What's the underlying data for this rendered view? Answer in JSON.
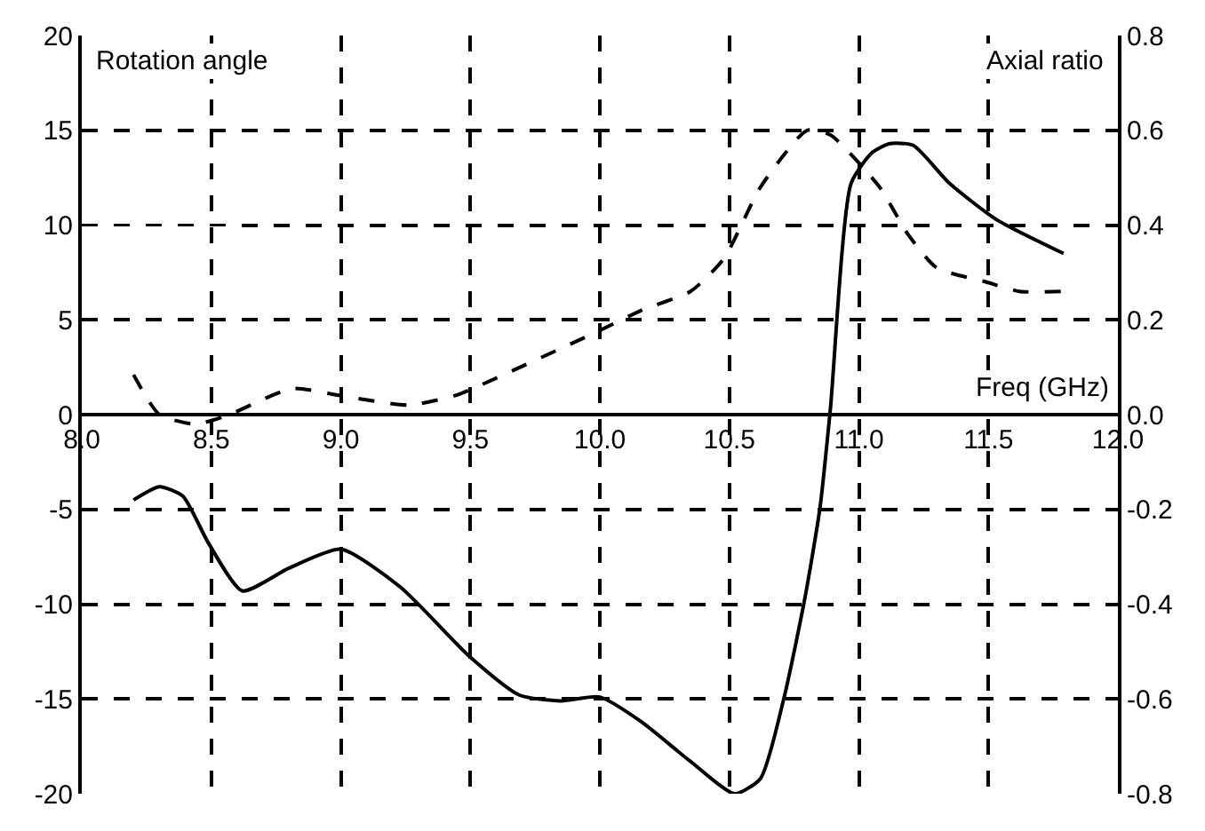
{
  "chart_data": {
    "type": "line",
    "xlabel": "Freq (GHz)",
    "ylabel": "Rotation angle",
    "y2label": "Axial ratio",
    "series": [
      {
        "color": "#000000",
        "line_style": "solid",
        "x": [
          8.2,
          8.3,
          8.39,
          8.49,
          8.62,
          8.8,
          9.0,
          9.23,
          9.5,
          9.69,
          9.85,
          10.0,
          10.16,
          10.35,
          10.52,
          10.62,
          10.71,
          10.79,
          10.85,
          10.89,
          10.97,
          11.05,
          11.12,
          11.21,
          11.35,
          11.53,
          11.79
        ],
        "values": [
          -4.5,
          -3.8,
          -4.3,
          -6.8,
          -9.3,
          -8.1,
          -7.1,
          -9.1,
          -12.8,
          -14.8,
          -15.1,
          -14.9,
          -16.2,
          -18.3,
          -20,
          -19.2,
          -15,
          -9.8,
          -4.9,
          0.3,
          12.2,
          13.8,
          14.3,
          14.2,
          12.2,
          10.3,
          8.5
        ]
      },
      {
        "color": "#000000",
        "line_style": "dashed",
        "axis": "y2",
        "x": [
          8.2,
          8.3,
          8.44,
          8.57,
          8.81,
          9.0,
          9.26,
          9.44,
          9.53,
          9.99,
          10.16,
          10.35,
          10.48,
          10.62,
          10.8,
          10.89,
          11.08,
          11.19,
          11.3,
          11.49,
          11.62,
          11.78
        ],
        "values": [
          0.084,
          0.0,
          -0.02,
          0.0,
          0.055,
          0.04,
          0.02,
          0.04,
          0.06,
          0.175,
          0.22,
          0.26,
          0.33,
          0.48,
          0.6,
          0.59,
          0.48,
          0.38,
          0.31,
          0.28,
          0.26,
          0.26
        ]
      }
    ],
    "xlim": [
      8,
      12
    ],
    "xticks": [
      {
        "value": 8,
        "label": "8.0"
      },
      8.5,
      {
        "value": 9,
        "label": "9.0"
      },
      9.5,
      {
        "value": 10,
        "label": "10.0"
      },
      10.5,
      {
        "value": 11,
        "label": "11.0"
      },
      11.5,
      {
        "value": 12,
        "label": "12.0"
      }
    ],
    "ylim": [
      -20,
      20
    ],
    "yticks": [
      -20,
      -15,
      -10,
      -5,
      0,
      5,
      10,
      15,
      20
    ],
    "y2lim": [
      -0.8,
      0.8
    ],
    "y2ticks": [
      -0.8,
      -0.6,
      -0.4,
      -0.2,
      {
        "value": 0,
        "label": "0.0"
      },
      0.2,
      0.4,
      0.6,
      0.8
    ],
    "grid": true
  }
}
